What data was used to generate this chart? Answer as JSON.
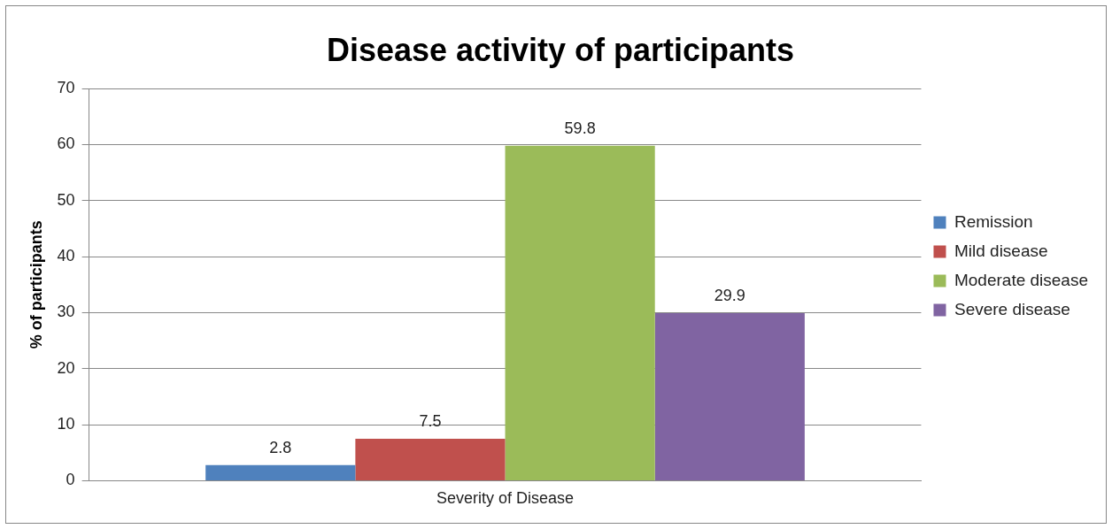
{
  "chart_data": {
    "type": "bar",
    "title": "Disease activity of participants",
    "ylabel": "% of participants",
    "categories": [
      "Severity of Disease"
    ],
    "series": [
      {
        "name": "Remission",
        "color": "#4f81bd",
        "values": [
          2.8
        ]
      },
      {
        "name": "Mild disease",
        "color": "#c0504d",
        "values": [
          7.5
        ]
      },
      {
        "name": "Moderate disease",
        "color": "#9bbb59",
        "values": [
          59.8
        ]
      },
      {
        "name": "Severe disease",
        "color": "#8064a2",
        "values": [
          29.9
        ]
      }
    ],
    "ylim": [
      0,
      70
    ],
    "yticks": [
      0,
      10,
      20,
      30,
      40,
      50,
      60,
      70
    ],
    "grid": "y",
    "legend": "right",
    "data_labels": true
  }
}
